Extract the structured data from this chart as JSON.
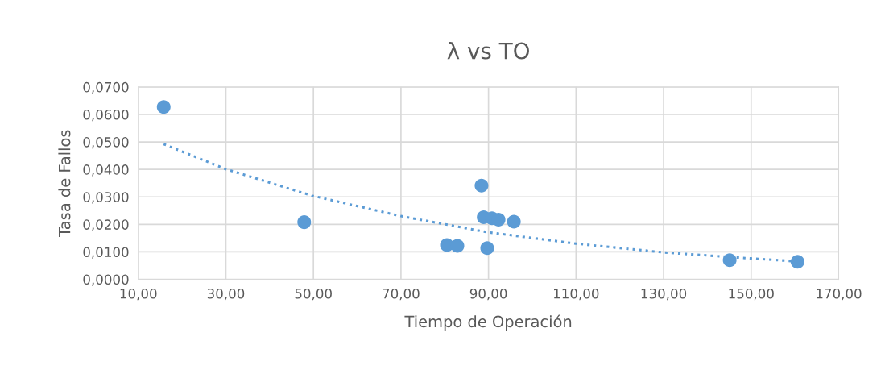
{
  "chart_data": {
    "type": "scatter",
    "title": "λ vs TO",
    "xlabel": "Tiempo de Operación",
    "ylabel": "Tasa de Fallos",
    "x": [
      15.8,
      47.9,
      80.5,
      82.9,
      88.4,
      88.9,
      90.8,
      92.3,
      95.8,
      89.7,
      145.1,
      160.6
    ],
    "series": [
      {
        "color": "#5b9bd5",
        "marker": "circle",
        "values": [
          0.0627,
          0.0208,
          0.0125,
          0.0122,
          0.0341,
          0.0226,
          0.0222,
          0.0217,
          0.021,
          0.0114,
          0.007,
          0.0064
        ]
      },
      {
        "type": "line",
        "color": "#5b9bd5",
        "line_style": "dotted",
        "marker": "none",
        "x": [
          15.8,
          30,
          49.8,
          70,
          90,
          110,
          130,
          150,
          160.6
        ],
        "values": [
          0.0492,
          0.0401,
          0.0304,
          0.023,
          0.0171,
          0.013,
          0.0098,
          0.0076,
          0.0065
        ]
      }
    ],
    "xlim": [
      10,
      170
    ],
    "xticks": [
      {
        "value": 10,
        "label": "10,00"
      },
      {
        "value": 30,
        "label": "30,00"
      },
      {
        "value": 50,
        "label": "50,00"
      },
      {
        "value": 70,
        "label": "70,00"
      },
      {
        "value": 90,
        "label": "90,00"
      },
      {
        "value": 110,
        "label": "110,00"
      },
      {
        "value": 130,
        "label": "130,00"
      },
      {
        "value": 150,
        "label": "150,00"
      },
      {
        "value": 170,
        "label": "170,00"
      }
    ],
    "ylim": [
      0,
      0.07
    ],
    "yticks": [
      {
        "value": 0,
        "label": "0,0000"
      },
      {
        "value": 0.01,
        "label": "0,0100"
      },
      {
        "value": 0.02,
        "label": "0,0200"
      },
      {
        "value": 0.03,
        "label": "0,0300"
      },
      {
        "value": 0.04,
        "label": "0,0400"
      },
      {
        "value": 0.05,
        "label": "0,0500"
      },
      {
        "value": 0.06,
        "label": "0,0600"
      },
      {
        "value": 0.07,
        "label": "0,0700"
      }
    ],
    "grid": true,
    "legend": false
  }
}
